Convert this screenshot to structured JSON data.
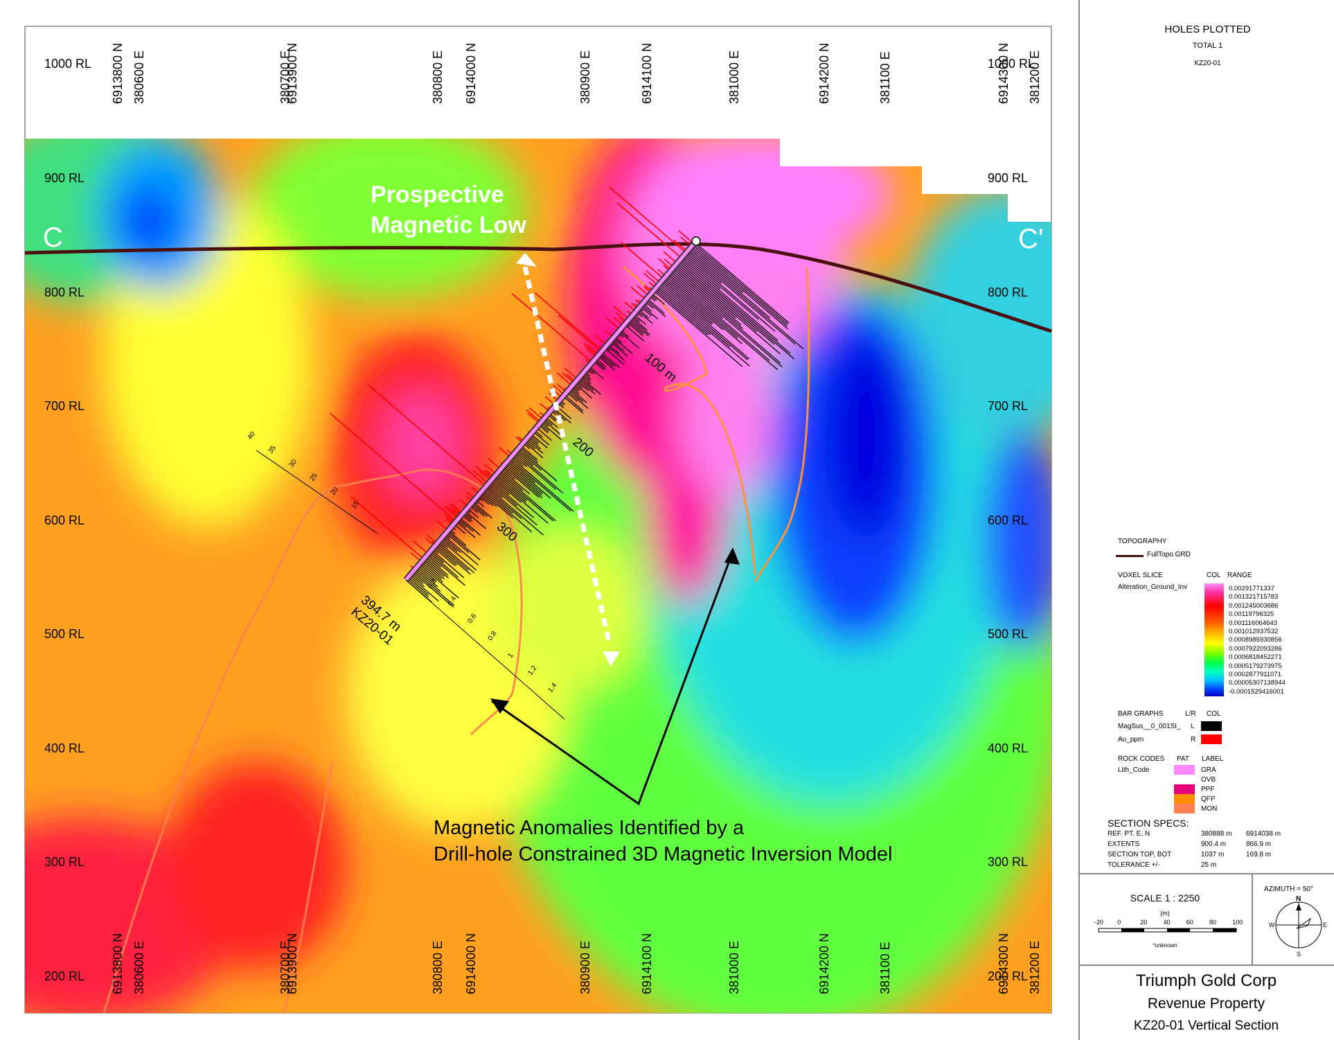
{
  "section": {
    "rl_labels": [
      "1000 RL",
      "900 RL",
      "800 RL",
      "700 RL",
      "600 RL",
      "500 RL",
      "400 RL",
      "300 RL",
      "200 RL"
    ],
    "grid_top_labels": [
      "6913800 N",
      "380600 E",
      "380700 E",
      "6913900 N",
      "380800 E",
      "6914000 N",
      "380900 E",
      "6914100 N",
      "381000 E",
      "6914200 N",
      "381100 E",
      "6914300 N",
      "381200 E"
    ],
    "grid_bottom_labels": [
      "6913800 N",
      "380600 E",
      "380700 E",
      "6913900 N",
      "380800 E",
      "6914000 N",
      "380900 E",
      "6914100 N",
      "381000 E",
      "6914200 N",
      "381100 E",
      "6914300 N",
      "381200 E"
    ],
    "section_left": "C",
    "section_right": "C'",
    "annotation_low": [
      "Prospective",
      "Magnetic Low"
    ],
    "annotation_anomalies": [
      "Magnetic Anomalies Identified by a",
      "Drill-hole Constrained 3D Magnetic Inversion Model"
    ],
    "hole_depth": "394.7 m",
    "hole_id": "KZ20-01",
    "depth_ticks": [
      "100 m",
      "200",
      "300"
    ],
    "scale_ticks_left": [
      "40",
      "35",
      "30",
      "25",
      "20",
      "15"
    ],
    "scale_ticks_right": [
      "0.2",
      "0.4",
      "0.6",
      "0.8",
      "1",
      "1.2",
      "1.4"
    ]
  },
  "legend": {
    "holes_title": "HOLES PLOTTED",
    "holes_total": "TOTAL 1",
    "holes_id": "KZ20-01",
    "topo_title": "TOPOGRAPHY",
    "topo_file": "FullTopo.GRD",
    "voxel_title": "VOXEL SLICE",
    "voxel_name": "Alteration_Ground_Inv",
    "col_label": "COL",
    "range_label": "RANGE",
    "ranges": [
      "0.00291771337",
      "0.001321715783",
      "0.001245003686",
      "0.00119796325",
      "0.001116064643",
      "0.001012937532",
      "0.0008985930856",
      "0.0007922093286",
      "0.0006818452271",
      "0.0005179273975",
      "0.0002877911071",
      "0.00005307138944",
      "-0.0001529416001"
    ],
    "bar_title": "BAR GRAPHS",
    "lr_label": "L/R",
    "bar_col_label": "COL",
    "bar1_name": "MagSus__0_001SI_",
    "bar1_side": "L",
    "bar2_name": "Au_ppm",
    "bar2_side": "R",
    "rock_title": "ROCK CODES",
    "pat_label": "PAT",
    "label_label": "LABEL",
    "rock_field": "Lith_Code",
    "rock_codes": [
      "GRA",
      "OVB",
      "PPF",
      "QFP",
      "MON"
    ],
    "specs_title": "SECTION SPECS:",
    "spec_rows": [
      {
        "label": "REF. PT.  E, N",
        "v1": "380888 m",
        "v2": "6914038 m"
      },
      {
        "label": "EXTENTS",
        "v1": "900.4 m",
        "v2": "866.9 m"
      },
      {
        "label": "SECTION TOP, BOT",
        "v1": "1037 m",
        "v2": "169.8 m"
      },
      {
        "label": "TOLERANCE  +/-",
        "v1": "25 m",
        "v2": ""
      }
    ]
  },
  "scale": {
    "label": "SCALE   1 : 2250",
    "unit": "(m)",
    "ticks": [
      "-20",
      "0",
      "20",
      "40",
      "60",
      "80",
      "100"
    ],
    "note": "*unknown",
    "azimuth": "AZIMUTH = 50°",
    "n": "N",
    "e": "E",
    "s": "S",
    "w": "W"
  },
  "title": {
    "company": "Triumph Gold Corp",
    "property": "Revenue Property",
    "section": "KZ20-01 Vertical Section"
  },
  "colors": {
    "topo_line": "#4a1010",
    "magsus": "#000000",
    "au": "#ff0000",
    "gra": "#ff88ff",
    "ppf": "#e8007a",
    "qfp": "#ff8c00",
    "mon": "#ff7f50"
  }
}
